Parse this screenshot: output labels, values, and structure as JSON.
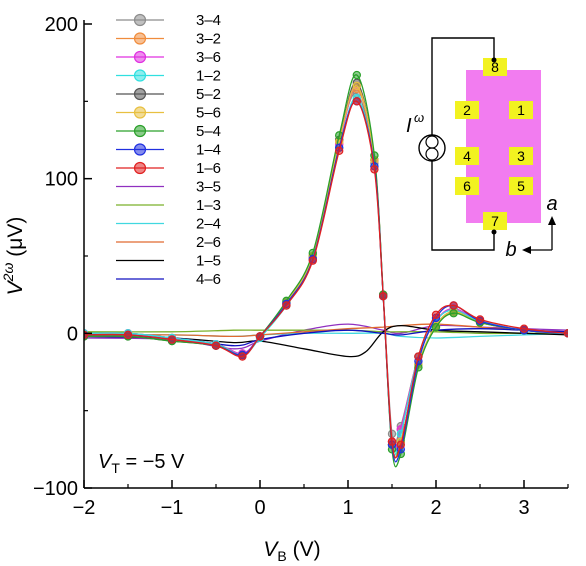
{
  "chart_data": {
    "type": "line",
    "xlabel": "V",
    "xlabel_sub": "B",
    "xlabel_unit": " (V)",
    "ylabel": "V",
    "ylabel_sup": "2ω",
    "ylabel_unit": " (μV)",
    "xlim": [
      -2,
      3.5
    ],
    "ylim": [
      -100,
      200
    ],
    "x_ticks": [
      -2,
      -1,
      0,
      1,
      2,
      3
    ],
    "y_ticks": [
      -100,
      0,
      100,
      200
    ],
    "x_tick_labels": [
      "−2",
      "−1",
      "0",
      "1",
      "2",
      "3"
    ],
    "y_tick_labels": [
      "−100",
      "0",
      "100",
      "200"
    ],
    "legend_position": "top-left",
    "annotation": {
      "prefix": "V",
      "sub": "T",
      "text": " = −5 V"
    },
    "inset": {
      "source_label": "I",
      "source_sup": "ω",
      "pads": [
        "8",
        "2",
        "1",
        "4",
        "3",
        "6",
        "5",
        "7"
      ],
      "axis_a": "a",
      "axis_b": "b"
    },
    "series": [
      {
        "name": "3–4",
        "color": "#8c8c8c",
        "markers": true,
        "x": [
          -2.0,
          -1.5,
          -1.0,
          -0.5,
          -0.2,
          0.0,
          0.3,
          0.6,
          0.9,
          1.1,
          1.3,
          1.4,
          1.5,
          1.6,
          1.8,
          2.0,
          2.2,
          2.5,
          3.0,
          3.5
        ],
        "y": [
          0,
          0,
          -3,
          -7,
          -13,
          -2,
          20,
          50,
          125,
          155,
          110,
          25,
          -65,
          -60,
          -15,
          8,
          15,
          8,
          2,
          0
        ]
      },
      {
        "name": "3–2",
        "color": "#f08c3c",
        "markers": true,
        "x": [
          -2.0,
          -1.5,
          -1.0,
          -0.5,
          -0.2,
          0.0,
          0.3,
          0.6,
          0.9,
          1.1,
          1.3,
          1.4,
          1.5,
          1.6,
          1.8,
          2.0,
          2.2,
          2.5,
          3.0,
          3.5
        ],
        "y": [
          0,
          0,
          -3,
          -7,
          -13,
          -2,
          19,
          49,
          123,
          158,
          112,
          25,
          -70,
          -62,
          -15,
          8,
          16,
          8,
          2,
          0
        ]
      },
      {
        "name": "3–6",
        "color": "#e030e0",
        "markers": true,
        "x": [
          -2.0,
          -1.5,
          -1.0,
          -0.5,
          -0.2,
          0.0,
          0.3,
          0.6,
          0.9,
          1.1,
          1.3,
          1.4,
          1.5,
          1.6,
          1.8,
          2.0,
          2.2,
          2.5,
          3.0,
          3.5
        ],
        "y": [
          0,
          0,
          -3,
          -7,
          -13,
          -2,
          19,
          49,
          122,
          160,
          112,
          25,
          -70,
          -62,
          -15,
          8,
          16,
          8,
          2,
          0
        ]
      },
      {
        "name": "1–2",
        "color": "#30e0e0",
        "markers": true,
        "x": [
          -2.0,
          -1.5,
          -1.0,
          -0.5,
          -0.2,
          0.0,
          0.3,
          0.6,
          0.9,
          1.1,
          1.3,
          1.4,
          1.5,
          1.6,
          1.8,
          2.0,
          2.2,
          2.5,
          3.0,
          3.5
        ],
        "y": [
          0,
          0,
          -3,
          -7,
          -14,
          -3,
          18,
          48,
          120,
          152,
          108,
          24,
          -72,
          -65,
          -15,
          8,
          15,
          8,
          2,
          0
        ]
      },
      {
        "name": "5–2",
        "color": "#555555",
        "markers": true,
        "x": [
          -2.0,
          -1.5,
          -1.0,
          -0.5,
          -0.2,
          0.0,
          0.3,
          0.6,
          0.9,
          1.1,
          1.3,
          1.4,
          1.5,
          1.6,
          1.8,
          2.0,
          2.2,
          2.5,
          3.0,
          3.5
        ],
        "y": [
          -2,
          -2,
          -5,
          -8,
          -14,
          -2,
          20,
          50,
          125,
          162,
          112,
          25,
          -72,
          -70,
          -20,
          5,
          14,
          7,
          2,
          0
        ]
      },
      {
        "name": "5–6",
        "color": "#e8c040",
        "markers": true,
        "x": [
          -2.0,
          -1.5,
          -1.0,
          -0.5,
          -0.2,
          0.0,
          0.3,
          0.6,
          0.9,
          1.1,
          1.3,
          1.4,
          1.5,
          1.6,
          1.8,
          2.0,
          2.2,
          2.5,
          3.0,
          3.5
        ],
        "y": [
          -1,
          -1,
          -4,
          -8,
          -14,
          -2,
          20,
          50,
          124,
          160,
          112,
          25,
          -72,
          -70,
          -20,
          5,
          14,
          7,
          2,
          0
        ]
      },
      {
        "name": "5–4",
        "color": "#2aa02a",
        "markers": true,
        "x": [
          -2.0,
          -1.5,
          -1.0,
          -0.5,
          -0.2,
          0.0,
          0.3,
          0.6,
          0.9,
          1.1,
          1.3,
          1.4,
          1.5,
          1.6,
          1.8,
          2.0,
          2.2,
          2.5,
          3.0,
          3.5
        ],
        "y": [
          -2,
          -2,
          -5,
          -8,
          -14,
          -2,
          21,
          52,
          128,
          167,
          115,
          25,
          -75,
          -78,
          -22,
          4,
          13,
          7,
          2,
          0
        ]
      },
      {
        "name": "1–4",
        "color": "#2030e0",
        "markers": true,
        "x": [
          -2.0,
          -1.5,
          -1.0,
          -0.5,
          -0.2,
          0.0,
          0.3,
          0.6,
          0.9,
          1.1,
          1.3,
          1.4,
          1.5,
          1.6,
          1.8,
          2.0,
          2.2,
          2.5,
          3.0,
          3.5
        ],
        "y": [
          -1,
          -1,
          -4,
          -8,
          -14,
          -2,
          19,
          48,
          120,
          150,
          108,
          24,
          -72,
          -75,
          -18,
          10,
          18,
          8,
          2,
          0
        ]
      },
      {
        "name": "1–6",
        "color": "#e02020",
        "markers": true,
        "x": [
          -2.0,
          -1.5,
          -1.0,
          -0.5,
          -0.2,
          0.0,
          0.3,
          0.6,
          0.9,
          1.1,
          1.3,
          1.4,
          1.5,
          1.6,
          1.8,
          2.0,
          2.2,
          2.5,
          3.0,
          3.5
        ],
        "y": [
          -1,
          -1,
          -4,
          -8,
          -15,
          -2,
          18,
          47,
          118,
          150,
          106,
          24,
          -70,
          -72,
          -15,
          12,
          18,
          9,
          3,
          0
        ]
      },
      {
        "name": "3–5",
        "color": "#9030c0",
        "markers": false,
        "x": [
          -2.0,
          -1.0,
          -0.3,
          0.0,
          0.5,
          1.0,
          1.4,
          1.6,
          2.0,
          2.5,
          3.0,
          3.5
        ],
        "y": [
          -3,
          -4,
          -10,
          -5,
          2,
          6,
          2,
          0,
          5,
          4,
          3,
          2
        ]
      },
      {
        "name": "1–3",
        "color": "#7ab02a",
        "markers": false,
        "x": [
          -2.0,
          -1.0,
          -0.3,
          0.0,
          0.5,
          1.0,
          1.4,
          1.6,
          2.0,
          2.5,
          3.0,
          3.5
        ],
        "y": [
          1,
          1,
          2,
          2,
          2,
          2,
          1,
          1,
          1,
          0,
          0,
          0
        ]
      },
      {
        "name": "2–4",
        "color": "#40d8e0",
        "markers": false,
        "x": [
          -2.0,
          -1.0,
          -0.3,
          0.0,
          0.5,
          1.0,
          1.4,
          1.6,
          2.0,
          2.5,
          3.0,
          3.5
        ],
        "y": [
          -1,
          -1,
          -2,
          -1,
          0,
          0,
          0,
          -2,
          -3,
          -2,
          -1,
          0
        ]
      },
      {
        "name": "2–6",
        "color": "#e06a30",
        "markers": false,
        "x": [
          -2.0,
          -1.0,
          -0.3,
          0.0,
          0.5,
          1.0,
          1.4,
          1.6,
          2.0,
          2.5,
          3.0,
          3.5
        ],
        "y": [
          -1,
          -1,
          -2,
          -1,
          1,
          3,
          4,
          5,
          6,
          4,
          2,
          1
        ]
      },
      {
        "name": "1–5",
        "color": "#000000",
        "markers": false,
        "x": [
          -2.0,
          -1.0,
          -0.3,
          0.0,
          0.5,
          1.0,
          1.2,
          1.4,
          1.6,
          2.0,
          2.5,
          3.0,
          3.5
        ],
        "y": [
          -2,
          -3,
          -6,
          -5,
          -10,
          -15,
          -12,
          1,
          5,
          2,
          1,
          0,
          -1
        ]
      },
      {
        "name": "4–6",
        "color": "#1010c0",
        "markers": false,
        "x": [
          -2.0,
          -1.0,
          -0.3,
          0.0,
          0.5,
          1.0,
          1.4,
          1.6,
          2.0,
          2.5,
          3.0,
          3.5
        ],
        "y": [
          -2,
          -3,
          -8,
          -4,
          0,
          2,
          0,
          -1,
          2,
          3,
          2,
          1
        ]
      }
    ]
  }
}
